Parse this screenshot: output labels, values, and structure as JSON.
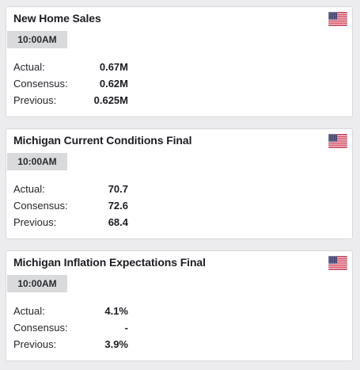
{
  "events": [
    {
      "title": "New Home Sales",
      "time": "10:00AM",
      "flag": "us-flag-icon",
      "rows": [
        {
          "label": "Actual:",
          "value": "0.67M"
        },
        {
          "label": "Consensus:",
          "value": "0.62M"
        },
        {
          "label": "Previous:",
          "value": "0.625M"
        }
      ]
    },
    {
      "title": "Michigan Current Conditions Final",
      "time": "10:00AM",
      "flag": "us-flag-icon",
      "rows": [
        {
          "label": "Actual:",
          "value": "70.7"
        },
        {
          "label": "Consensus:",
          "value": "72.6"
        },
        {
          "label": "Previous:",
          "value": "68.4"
        }
      ]
    },
    {
      "title": "Michigan Inflation Expectations Final",
      "time": "10:00AM",
      "flag": "us-flag-icon",
      "rows": [
        {
          "label": "Actual:",
          "value": "4.1%"
        },
        {
          "label": "Consensus:",
          "value": "-"
        },
        {
          "label": "Previous:",
          "value": "3.9%"
        }
      ]
    }
  ],
  "colors": {
    "background": "#ececef",
    "card": "#ffffff",
    "time_badge": "#d9dadc",
    "flag_red": "#c8102e",
    "flag_blue": "#3c3b6e"
  }
}
